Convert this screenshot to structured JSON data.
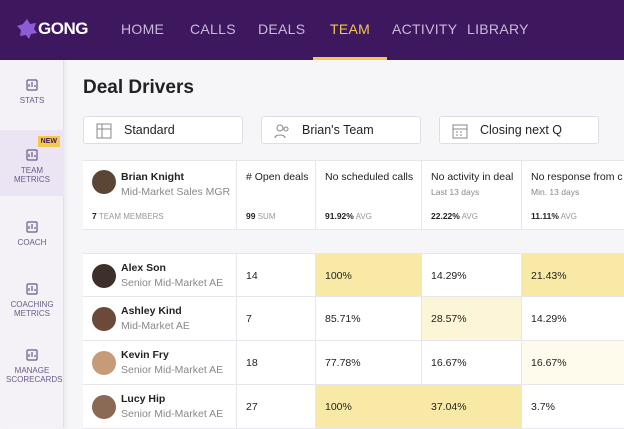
{
  "nav": {
    "logo": "GONG",
    "items": [
      "HOME",
      "CALLS",
      "DEALS",
      "TEAM",
      "ACTIVITY",
      "LIBRARY"
    ],
    "active": 3
  },
  "sidebar": {
    "active": 1,
    "items": [
      {
        "label": "STATS"
      },
      {
        "label": "TEAM METRICS",
        "badge": "NEW"
      },
      {
        "label": "COACH"
      },
      {
        "label": "COACHING METRICS"
      },
      {
        "label": "MANAGE SCORECARDS"
      }
    ]
  },
  "page": {
    "title": "Deal Drivers"
  },
  "filters": [
    "Standard",
    "Brian's Team",
    "Closing next Q"
  ],
  "table": {
    "manager": {
      "name": "Brian Knight",
      "role": "Mid-Market Sales MGR",
      "members": {
        "value": "7",
        "label": "TEAM MEMBERS"
      }
    },
    "columns": [
      {
        "title": "# Open deals",
        "summary": {
          "value": "99",
          "label": "SUM"
        }
      },
      {
        "title": "No scheduled calls",
        "summary": {
          "value": "91.92%",
          "label": "AVG"
        }
      },
      {
        "title": "No activity in deal",
        "sub": "Last 13 days",
        "summary": {
          "value": "22.22%",
          "label": "AVG"
        }
      },
      {
        "title": "No response from c",
        "sub": "Min. 13 days",
        "summary": {
          "value": "11.11%",
          "label": "AVG"
        }
      }
    ],
    "rows": [
      {
        "name": "Alex Son",
        "role": "Senior Mid-Market AE",
        "cells": [
          "14",
          "100%",
          "14.29%",
          "21.43%"
        ],
        "cell_colors": [
          "#ffffff",
          "#f8eaa6",
          "#ffffff",
          "#f8eaa6"
        ]
      },
      {
        "name": "Ashley Kind",
        "role": "Mid-Market AE",
        "cells": [
          "7",
          "85.71%",
          "28.57%",
          "14.29%"
        ],
        "cell_colors": [
          "#ffffff",
          "#ffffff",
          "#fdf5d8",
          "#ffffff"
        ]
      },
      {
        "name": "Kevin Fry",
        "role": "Senior Mid-Market AE",
        "cells": [
          "18",
          "77.78%",
          "16.67%",
          "16.67%"
        ],
        "cell_colors": [
          "#ffffff",
          "#ffffff",
          "#ffffff",
          "#fefaec"
        ]
      },
      {
        "name": "Lucy Hip",
        "role": "Senior Mid-Market AE",
        "cells": [
          "27",
          "100%",
          "37.04%",
          "3.7%"
        ],
        "cell_colors": [
          "#ffffff",
          "#f8eaa6",
          "#f8eaa6",
          "#ffffff"
        ]
      }
    ]
  }
}
